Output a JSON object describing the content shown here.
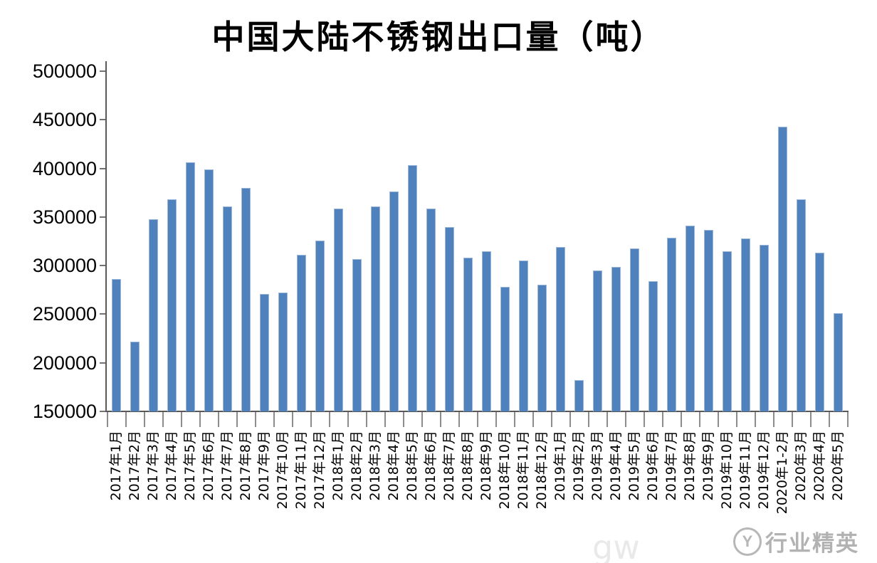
{
  "title": "中国大陆不锈钢出口量（吨）",
  "watermark": {
    "text": "行业精英",
    "logo_letter": "Y",
    "faint_text": "gw"
  },
  "colors": {
    "bar_fill": "#4f81bd",
    "bar_edge": "#9db8d9",
    "axis": "#595959",
    "tick": "#8c8c8c",
    "text": "#000000",
    "watermark": "#a0a0a0"
  },
  "chart_data": {
    "type": "bar",
    "title": "中国大陆不锈钢出口量（吨）",
    "xlabel": "",
    "ylabel": "",
    "ylim": [
      150000,
      500000
    ],
    "ytick_step": 50000,
    "yticks": [
      500000,
      450000,
      400000,
      350000,
      300000,
      250000,
      200000,
      150000
    ],
    "grid": false,
    "legend": null,
    "categories": [
      "2017年1月",
      "2017年2月",
      "2017年3月",
      "2017年4月",
      "2017年5月",
      "2017年6月",
      "2017年7月",
      "2017年8月",
      "2017年9月",
      "2017年10月",
      "2017年11月",
      "2017年12月",
      "2018年1月",
      "2018年2月",
      "2018年3月",
      "2018年4月",
      "2018年5月",
      "2018年6月",
      "2018年7月",
      "2018年8月",
      "2018年9月",
      "2018年10月",
      "2018年11月",
      "2018年12月",
      "2019年1月",
      "2019年2月",
      "2019年3月",
      "2019年4月",
      "2019年5月",
      "2019年6月",
      "2019年7月",
      "2019年8月",
      "2019年9月",
      "2019年10月",
      "2019年11月",
      "2019年12月",
      "2020年1-2月",
      "2020年3月",
      "2020年4月",
      "2020年5月"
    ],
    "values": [
      286000,
      222000,
      348000,
      368000,
      406000,
      399000,
      361000,
      380000,
      271000,
      272000,
      311000,
      326000,
      359000,
      307000,
      361000,
      376000,
      403000,
      359000,
      340000,
      308000,
      315000,
      278000,
      305000,
      280000,
      319000,
      182000,
      295000,
      299000,
      318000,
      284000,
      329000,
      341000,
      337000,
      315000,
      328000,
      321000,
      443000,
      368000,
      313000,
      251000
    ]
  }
}
